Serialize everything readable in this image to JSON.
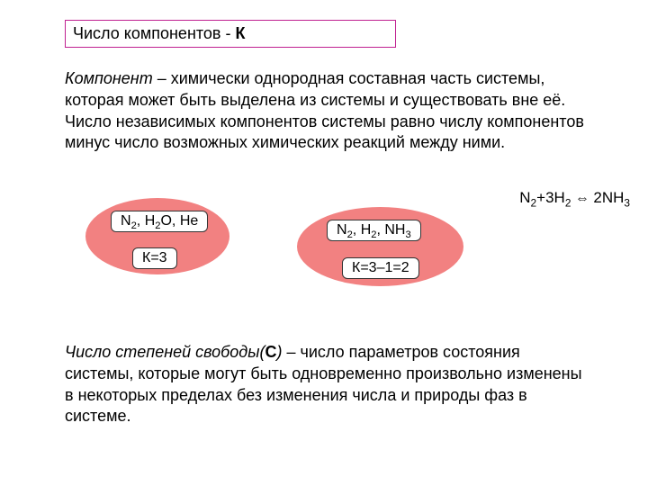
{
  "title": {
    "prefix": "Число компонентов - ",
    "symbol": "К"
  },
  "para1": {
    "term": "Компонент",
    "text_after_term": " – химически однородная составная часть системы, которая может быть выделена из системы и существовать вне её. Число независимых компонентов системы равно числу компонентов минус число возможных химических реакций между ними."
  },
  "equation": {
    "lhs_n": "N",
    "lhs_n_sub": "2",
    "plus": "+3H",
    "lhs_h_sub": "2",
    "arrow": " ⇔ ",
    "rhs_coef": "2NH",
    "rhs_sub": "3"
  },
  "ellipse1": {
    "top_chip": {
      "t1": "N",
      "s1": "2",
      "t2": ", H",
      "s2": "2",
      "t3": "O, He"
    },
    "bot_chip": "К=3"
  },
  "ellipse2": {
    "top_chip": {
      "t1": "N",
      "s1": "2",
      "t2": ", H",
      "s2": "2",
      "t3": ", NH",
      "s3": "3"
    },
    "bot_chip": "К=3–1=2"
  },
  "para2": {
    "term": "Число степеней свободы(",
    "bold_letter": "С",
    "term_close": ")",
    "text_rest": " – число параметров состояния системы, которые могут быть одновременно произвольно изменены в некоторых пределах без изменения числа и природы фаз в системе."
  },
  "colors": {
    "title_border": "#c02090",
    "ellipse_fill": "#f28181",
    "chip_bg": "#ffffff",
    "chip_border": "#333333",
    "text": "#000000",
    "background": "#ffffff"
  }
}
